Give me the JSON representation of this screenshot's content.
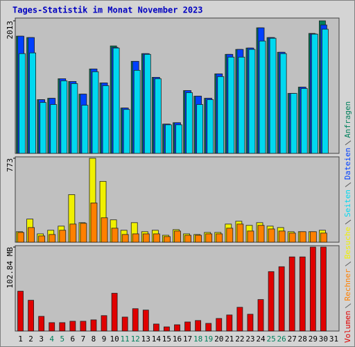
{
  "chart_data": [
    {
      "type": "bar",
      "title": "Tages-Statistik im Monat November 2023",
      "ylim": [
        0,
        2013
      ],
      "yticks": [
        2013
      ],
      "series": [
        {
          "name": "Anfragen",
          "color": "#00805c",
          "values": [
            1780,
            1759,
            816,
            837,
            1134,
            1092,
            900,
            1282,
            1070,
            1632,
            689,
            1398,
            1515,
            1155,
            445,
            466,
            954,
            869,
            837,
            1208,
            1504,
            1579,
            1600,
            1907,
            1759,
            1536,
            911,
            1006,
            1822,
            2013,
            null
          ]
        },
        {
          "name": "Dateien",
          "color": "#0040ff",
          "values": [
            1780,
            1759,
            816,
            837,
            1134,
            1092,
            900,
            1282,
            1070,
            1610,
            689,
            1398,
            1515,
            1155,
            445,
            466,
            954,
            869,
            837,
            1208,
            1504,
            1579,
            1600,
            1907,
            1759,
            1536,
            911,
            1006,
            1815,
            1950,
            null
          ]
        },
        {
          "name": "Seiten",
          "color": "#00d8f0",
          "values": [
            1515,
            1526,
            773,
            742,
            1102,
            1060,
            731,
            1240,
            1028,
            1600,
            667,
            1261,
            1504,
            1134,
            434,
            434,
            922,
            742,
            816,
            1166,
            1462,
            1462,
            1579,
            1706,
            1748,
            1515,
            911,
            985,
            1811,
            1886,
            null
          ]
        }
      ]
    },
    {
      "type": "bar",
      "ylim": [
        0,
        773
      ],
      "yticks": [
        773
      ],
      "series": [
        {
          "name": "Besuche",
          "color": "#f0f000",
          "values": [
            97,
            213,
            77,
            110,
            148,
            438,
            180,
            773,
            560,
            206,
            110,
            180,
            97,
            110,
            64,
            116,
            77,
            71,
            90,
            90,
            167,
            193,
            155,
            180,
            148,
            135,
            97,
            97,
            97,
            110,
            null
          ]
        },
        {
          "name": "Rechner",
          "color": "#ff8000",
          "values": [
            90,
            135,
            58,
            71,
            110,
            167,
            174,
            361,
            225,
            129,
            71,
            77,
            77,
            77,
            52,
            103,
            64,
            64,
            77,
            77,
            129,
            167,
            103,
            155,
            122,
            103,
            84,
            97,
            97,
            84,
            null
          ]
        }
      ]
    },
    {
      "type": "bar",
      "ylim": [
        0,
        102.84
      ],
      "yticks": [
        {
          "value": 102.84,
          "label": "102.84 MB"
        }
      ],
      "categories": [
        "1",
        "2",
        "3",
        "4",
        "5",
        "6",
        "7",
        "8",
        "9",
        "10",
        "11",
        "12",
        "13",
        "14",
        "15",
        "16",
        "17",
        "18",
        "19",
        "20",
        "21",
        "22",
        "23",
        "24",
        "25",
        "26",
        "27",
        "28",
        "29",
        "30",
        "31"
      ],
      "category_colors": [
        "#000000",
        "#000000",
        "#000000",
        "#00805c",
        "#00805c",
        "#000000",
        "#000000",
        "#000000",
        "#000000",
        "#000000",
        "#00805c",
        "#00805c",
        "#000000",
        "#000000",
        "#000000",
        "#000000",
        "#000000",
        "#00805c",
        "#00805c",
        "#000000",
        "#000000",
        "#000000",
        "#000000",
        "#000000",
        "#00805c",
        "#00805c",
        "#000000",
        "#000000",
        "#000000",
        "#000000",
        "#000000"
      ],
      "series": [
        {
          "name": "Volumen",
          "color": "#e00000",
          "values": [
            48.8,
            37.7,
            18.0,
            10.3,
            10.3,
            12.0,
            12.0,
            13.7,
            18.9,
            46.3,
            17.1,
            27.4,
            25.7,
            8.6,
            5.1,
            7.7,
            11.1,
            12.9,
            9.4,
            15.4,
            19.7,
            29.1,
            20.6,
            38.6,
            72.8,
            78.8,
            90.8,
            90.8,
            102.84,
            102.84,
            null
          ]
        }
      ]
    }
  ]
}
